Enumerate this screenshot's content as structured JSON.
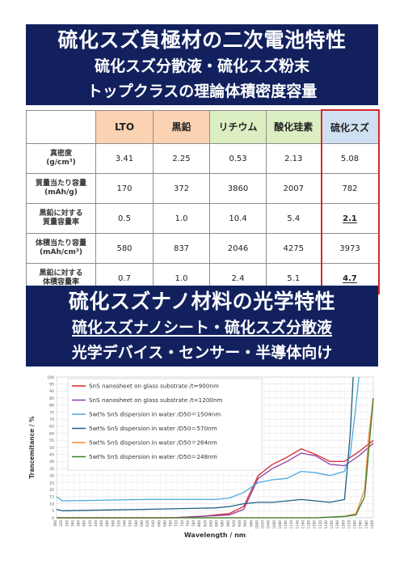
{
  "banner1": {
    "title": "硫化スズ負極材の二次電池特性",
    "line2": "硫化スズ分散液・硫化スズ粉末",
    "line3": "トップクラスの理論体積密度容量"
  },
  "table": {
    "columns": [
      "LTO",
      "黒鉛",
      "リチウム",
      "酸化珪素",
      "硫化スズ"
    ],
    "column_colors": [
      "#fbd3b3",
      "#fbd3b3",
      "#dcefc2",
      "#dcefc2",
      "#cfe0f2"
    ],
    "rows": [
      {
        "label_top": "真密度",
        "label_bottom": "(g/cm³)",
        "values": [
          "3.41",
          "2.25",
          "0.53",
          "2.13",
          "5.08"
        ]
      },
      {
        "label_top": "質量当たり容量",
        "label_bottom": "(mAh/g)",
        "values": [
          "170",
          "372",
          "3860",
          "2007",
          "782"
        ]
      },
      {
        "label_top": "黒鉛に対する",
        "label_bottom": "質量容量率",
        "values": [
          "0.5",
          "1.0",
          "10.4",
          "5.4",
          "2.1"
        ]
      },
      {
        "label_top": "体積当たり容量",
        "label_bottom": "(mAh/cm³)",
        "values": [
          "580",
          "837",
          "2046",
          "4275",
          "3973"
        ]
      },
      {
        "label_top": "黒鉛に対する",
        "label_bottom": "体積容量率",
        "values": [
          "0.7",
          "1.0",
          "2.4",
          "5.1",
          "4.7"
        ]
      }
    ]
  },
  "banner2": {
    "title": "硫化スズナノ材料の光学特性",
    "line2": "硫化スズナノシート・硫化スズ分散液",
    "line3": "光学デバイス・センサー・半導体向け"
  },
  "chart_data": {
    "type": "line",
    "xlabel": "Wavelength / nm",
    "ylabel": "Trancemitance / %",
    "xlim": [
      300,
      1400
    ],
    "ylim": [
      0,
      100
    ],
    "yticks": [
      "0",
      "5",
      "10",
      "15",
      "20",
      "25",
      "30",
      "35",
      "40",
      "45",
      "50",
      "55",
      "60",
      "65",
      "70",
      "75",
      "80",
      "85",
      "90",
      "95",
      "100"
    ],
    "xticks": [
      "300",
      "320",
      "340",
      "360",
      "380",
      "400",
      "420",
      "440",
      "460",
      "480",
      "500",
      "520",
      "540",
      "560",
      "580",
      "600",
      "620",
      "640",
      "660",
      "680",
      "700",
      "720",
      "740",
      "760",
      "780",
      "800",
      "820",
      "840",
      "860",
      "880",
      "900",
      "920",
      "940",
      "960",
      "980",
      "1000",
      "1020",
      "1040",
      "1060",
      "1080",
      "1100",
      "1120",
      "1140",
      "1160",
      "1180",
      "1200",
      "1220",
      "1240",
      "1260",
      "1280",
      "1300",
      "1320",
      "1340",
      "1360",
      "1380",
      "1400"
    ],
    "grid": true,
    "legend": "top-left",
    "series": [
      {
        "name": "SnS nanosheet on glass substrate /t=900nm",
        "color": "#d8262f",
        "x": [
          300,
          700,
          800,
          900,
          950,
          1000,
          1050,
          1100,
          1150,
          1200,
          1250,
          1300,
          1350,
          1400
        ],
        "y": [
          0,
          0,
          1,
          3,
          8,
          30,
          38,
          43,
          49,
          45,
          40,
          40,
          47,
          55
        ]
      },
      {
        "name": "SnS nanosheet on glass substrate /t=1200nm",
        "color": "#8a3fa0",
        "x": [
          300,
          700,
          800,
          900,
          950,
          1000,
          1050,
          1100,
          1150,
          1200,
          1250,
          1300,
          1350,
          1400
        ],
        "y": [
          0,
          0,
          1,
          2,
          6,
          28,
          35,
          40,
          46,
          44,
          38,
          37,
          44,
          53
        ]
      },
      {
        "name": "5wt% SnS dispersion in water /D50＝1504nm",
        "color": "#4aa9e0",
        "x": [
          300,
          320,
          600,
          850,
          900,
          950,
          1000,
          1050,
          1100,
          1150,
          1200,
          1250,
          1300,
          1320,
          1340,
          1350
        ],
        "y": [
          15,
          12,
          13,
          13,
          14,
          18,
          25,
          27,
          28,
          33,
          32,
          30,
          33,
          45,
          80,
          100
        ]
      },
      {
        "name": "5wt% SnS dispersion in water /D50＝570nm",
        "color": "#1f5f7f",
        "x": [
          300,
          320,
          600,
          850,
          900,
          950,
          1000,
          1050,
          1100,
          1150,
          1200,
          1250,
          1300,
          1320,
          1330
        ],
        "y": [
          6,
          5,
          6,
          7,
          8,
          10,
          11,
          11,
          12,
          13,
          12,
          11,
          13,
          60,
          100
        ]
      },
      {
        "name": "5wt% SnS dispersion in water /D50＝264nm",
        "color": "#f08a3c",
        "x": [
          300,
          900,
          1000,
          1200,
          1300,
          1340,
          1370,
          1385,
          1400
        ],
        "y": [
          0,
          0,
          0,
          0,
          1,
          3,
          20,
          60,
          85
        ]
      },
      {
        "name": "5wt% SnS dispersion in water /D50＝248nm",
        "color": "#3b7d2a",
        "x": [
          300,
          900,
          1000,
          1200,
          1300,
          1340,
          1370,
          1385,
          1400
        ],
        "y": [
          0,
          0,
          0,
          0,
          1,
          2,
          15,
          50,
          85
        ]
      }
    ]
  }
}
